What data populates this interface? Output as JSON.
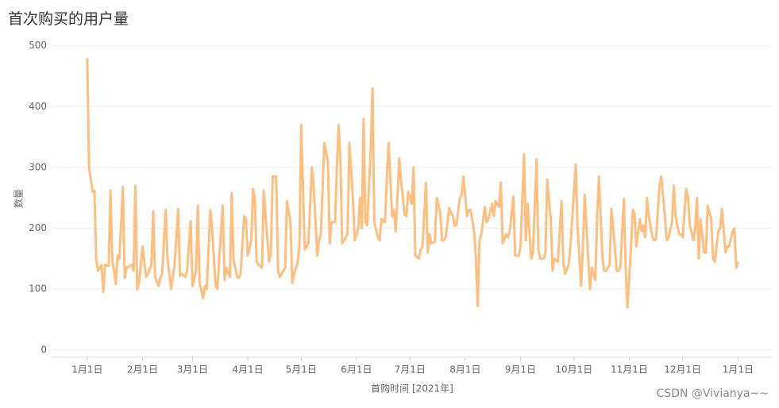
{
  "chart_data": {
    "type": "line",
    "title": "首次购买的用户量",
    "xlabel": "首购时间 [2021年]",
    "ylabel": "数量",
    "annotation": "CSDN @Vivianya~~",
    "x": [
      0,
      1,
      3,
      4,
      5,
      6,
      8,
      9,
      10,
      12,
      13,
      14,
      16,
      17,
      18,
      20,
      21,
      22,
      25,
      26,
      27,
      28,
      29,
      31,
      33,
      34,
      36,
      37,
      38,
      40,
      41,
      42,
      44,
      45,
      47,
      48,
      49,
      51,
      52,
      53,
      55,
      56,
      58,
      59,
      61,
      62,
      63,
      65,
      66,
      67,
      69,
      70,
      72,
      73,
      74,
      76,
      77,
      78,
      80,
      81,
      82,
      84,
      85,
      86,
      88,
      89,
      90,
      92,
      93,
      94,
      95,
      96,
      98,
      99,
      100,
      102,
      103,
      104,
      106,
      107,
      108,
      110,
      111,
      112,
      114,
      115,
      116,
      118,
      119,
      120,
      122,
      123,
      124,
      126,
      127,
      129,
      130,
      131,
      133,
      135,
      136,
      137,
      139,
      140,
      141,
      142,
      143,
      145,
      146,
      147,
      149,
      150,
      152,
      153,
      154,
      155,
      156,
      157,
      159,
      160,
      161,
      163,
      164,
      165,
      167,
      168,
      169,
      170,
      171,
      172,
      173,
      174,
      175,
      176,
      178,
      179,
      180,
      182,
      183,
      184,
      186,
      187,
      188,
      190,
      191,
      192,
      193,
      195,
      196,
      198,
      199,
      200,
      201,
      203,
      205,
      206,
      207,
      209,
      210,
      211,
      213,
      214,
      215,
      217,
      218,
      219,
      220,
      221,
      223,
      224,
      225,
      227,
      228,
      229,
      231,
      232,
      233,
      235,
      236,
      237,
      239,
      240,
      242,
      243,
      245,
      246,
      247,
      249,
      250,
      252,
      253,
      254,
      256,
      257,
      258,
      260,
      261,
      262,
      264,
      266,
      267,
      268,
      270,
      271,
      273,
      274,
      275,
      277,
      278,
      279,
      281,
      282,
      283,
      285,
      286,
      287,
      289,
      290,
      291,
      293,
      294,
      295,
      297,
      298,
      299,
      301,
      302,
      303,
      305,
      306,
      307,
      308,
      310,
      311,
      312,
      313,
      314,
      315,
      317,
      318,
      319,
      321,
      322,
      324,
      325,
      326,
      328,
      329,
      330,
      332,
      333,
      334,
      336,
      337,
      338,
      340,
      341,
      342,
      343,
      344,
      346,
      347,
      348,
      350,
      351,
      352,
      354,
      355,
      356,
      358,
      359,
      360,
      362,
      363,
      364,
      365
    ],
    "series": [
      {
        "name": "数量",
        "color": "#fdbe7e",
        "values": [
          480,
          300,
          260,
          262,
          150,
          130,
          140,
          95,
          140,
          138,
          262,
          150,
          108,
          155,
          150,
          268,
          118,
          135,
          140,
          130,
          270,
          100,
          110,
          170,
          120,
          125,
          140,
          228,
          120,
          105,
          120,
          125,
          230,
          150,
          100,
          120,
          140,
          232,
          122,
          125,
          120,
          130,
          212,
          105,
          130,
          237,
          110,
          85,
          105,
          100,
          230,
          200,
          105,
          100,
          150,
          237,
          115,
          135,
          120,
          258,
          150,
          120,
          118,
          125,
          220,
          215,
          155,
          180,
          265,
          250,
          145,
          140,
          135,
          262,
          220,
          145,
          160,
          285,
          285,
          130,
          120,
          130,
          135,
          245,
          210,
          110,
          125,
          145,
          170,
          370,
          165,
          170,
          175,
          300,
          270,
          155,
          180,
          190,
          340,
          310,
          175,
          210,
          210,
          300,
          370,
          310,
          175,
          185,
          190,
          340,
          250,
          180,
          200,
          250,
          200,
          380,
          210,
          205,
          330,
          430,
          210,
          185,
          180,
          215,
          210,
          280,
          340,
          280,
          220,
          230,
          195,
          250,
          315,
          280,
          222,
          220,
          260,
          240,
          300,
          155,
          150,
          165,
          170,
          275,
          160,
          190,
          175,
          178,
          250,
          225,
          180,
          180,
          185,
          233,
          220,
          205,
          205,
          250,
          255,
          285,
          220,
          230,
          230,
          195,
          150,
          72,
          180,
          190,
          235,
          210,
          215,
          240,
          220,
          245,
          235,
          275,
          175,
          190,
          185,
          195,
          252,
          155,
          155,
          170,
          322,
          180,
          240,
          150,
          160,
          313,
          165,
          150,
          150,
          160,
          280,
          215,
          130,
          150,
          145,
          245,
          145,
          125,
          140,
          170,
          260,
          305,
          200,
          105,
          170,
          255,
          150,
          100,
          135,
          115,
          220,
          285,
          150,
          130,
          130,
          140,
          232,
          200,
          130,
          130,
          135,
          248,
          135,
          70,
          170,
          230,
          225,
          170,
          215,
          195,
          205,
          185,
          250,
          220,
          185,
          180,
          182,
          270,
          285,
          220,
          180,
          185,
          210,
          270,
          220,
          190,
          190,
          185,
          265,
          250,
          205,
          180,
          200,
          250,
          150,
          215,
          160,
          160,
          237,
          215,
          150,
          145,
          195,
          200,
          232,
          160,
          170,
          170,
          195,
          200,
          135,
          145
        ]
      }
    ],
    "xlim": [
      -20,
      384
    ],
    "xticks": [
      {
        "value": 0,
        "label": "1月1日"
      },
      {
        "value": 31,
        "label": "2月1日"
      },
      {
        "value": 59,
        "label": "3月1日"
      },
      {
        "value": 90,
        "label": "4月1日"
      },
      {
        "value": 120,
        "label": "5月1日"
      },
      {
        "value": 151,
        "label": "6月1日"
      },
      {
        "value": 181,
        "label": "7月1日"
      },
      {
        "value": 212,
        "label": "8月1日"
      },
      {
        "value": 243,
        "label": "9月1日"
      },
      {
        "value": 273,
        "label": "10月1日"
      },
      {
        "value": 304,
        "label": "11月1日"
      },
      {
        "value": 334,
        "label": "12月1日"
      },
      {
        "value": 365,
        "label": "1月1日"
      }
    ],
    "ylim": [
      -12,
      510
    ],
    "yticks": [
      0,
      100,
      200,
      300,
      400,
      500
    ],
    "grid": true
  }
}
